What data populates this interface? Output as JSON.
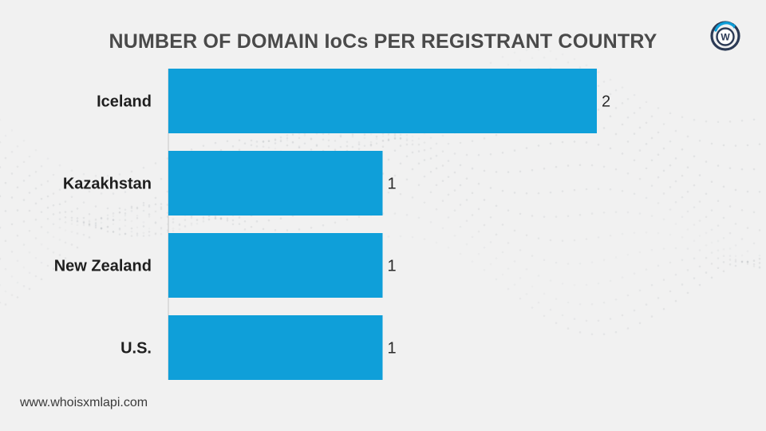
{
  "chart_data": {
    "type": "bar",
    "orientation": "horizontal",
    "title": "NUMBER OF DOMAIN IoCs PER REGISTRANT COUNTRY",
    "categories": [
      "Iceland",
      "Kazakhstan",
      "New Zealand",
      "U.S."
    ],
    "values": [
      2,
      1,
      1,
      1
    ],
    "xlim": [
      0,
      2
    ],
    "xlabel": "",
    "ylabel": "",
    "grid": false,
    "legend": "none",
    "data_labels": true,
    "bar_color": "#0f9fd9"
  },
  "brand": {
    "logo_icon": "whoisxmlapi-logo-icon",
    "logo_letter": "W",
    "logo_colors": [
      "#0f9fd9",
      "#2b3a55"
    ]
  },
  "footer": {
    "website": "www.whoisxmlapi.com"
  }
}
